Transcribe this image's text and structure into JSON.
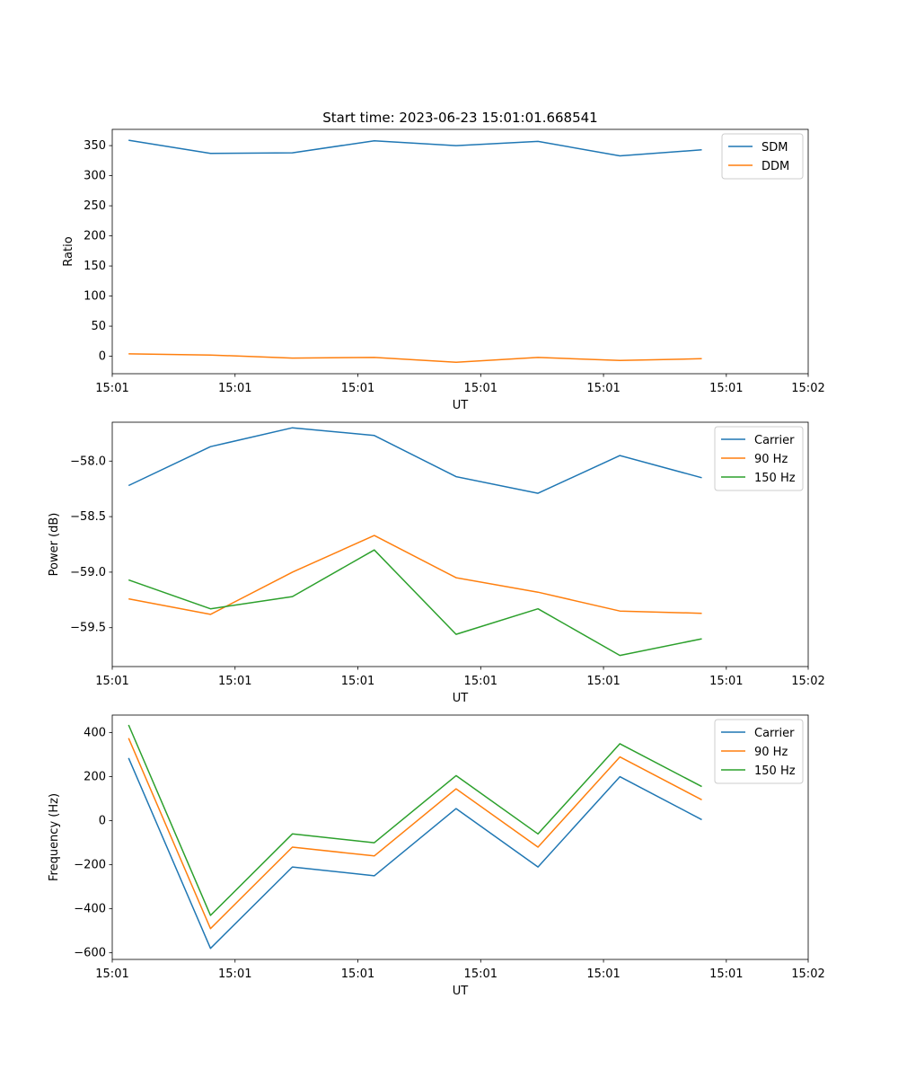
{
  "chart_data": [
    {
      "type": "line",
      "title": "Start time: 2023-06-23 15:01:01.668541",
      "xlabel": "UT",
      "ylabel": "Ratio",
      "x_tick_labels": [
        "15:01",
        "15:01",
        "15:01",
        "15:01",
        "15:01",
        "15:01",
        "15:02"
      ],
      "y_ticks": [
        0,
        50,
        100,
        150,
        200,
        250,
        300,
        350
      ],
      "ylim": [
        -29,
        377
      ],
      "x": [
        1,
        2,
        3,
        4,
        5,
        6,
        7,
        8
      ],
      "xlim": [
        0.8,
        9.3
      ],
      "x_tick_positions": [
        0.8,
        2.3,
        3.8,
        5.3,
        6.8,
        8.3,
        9.3
      ],
      "legend": "upper right",
      "series": [
        {
          "name": "SDM",
          "color": "#1f77b4",
          "values": [
            359,
            337,
            338,
            358,
            350,
            357,
            333,
            343
          ]
        },
        {
          "name": "DDM",
          "color": "#ff7f0e",
          "values": [
            4,
            2,
            -3,
            -2,
            -10,
            -2,
            -7,
            -4
          ]
        }
      ]
    },
    {
      "type": "line",
      "xlabel": "UT",
      "ylabel": "Power (dB)",
      "x_tick_labels": [
        "15:01",
        "15:01",
        "15:01",
        "15:01",
        "15:01",
        "15:01",
        "15:02"
      ],
      "y_ticks": [
        -59.5,
        -59.0,
        -58.5,
        -58.0
      ],
      "y_tick_labels": [
        "−59.5",
        "−59.0",
        "−58.5",
        "−58.0"
      ],
      "ylim": [
        -59.85,
        -57.65
      ],
      "x": [
        1,
        2,
        3,
        4,
        5,
        6,
        7,
        8
      ],
      "xlim": [
        0.8,
        9.3
      ],
      "x_tick_positions": [
        0.8,
        2.3,
        3.8,
        5.3,
        6.8,
        8.3,
        9.3
      ],
      "legend": "upper right",
      "series": [
        {
          "name": "Carrier",
          "color": "#1f77b4",
          "values": [
            -58.22,
            -57.87,
            -57.7,
            -57.77,
            -58.14,
            -58.29,
            -57.95,
            -58.15
          ]
        },
        {
          "name": "90 Hz",
          "color": "#ff7f0e",
          "values": [
            -59.24,
            -59.38,
            -59.0,
            -58.67,
            -59.05,
            -59.18,
            -59.35,
            -59.37
          ]
        },
        {
          "name": "150 Hz",
          "color": "#2ca02c",
          "values": [
            -59.07,
            -59.33,
            -59.22,
            -58.8,
            -59.56,
            -59.33,
            -59.75,
            -59.6
          ]
        }
      ]
    },
    {
      "type": "line",
      "xlabel": "UT",
      "ylabel": "Frequency (Hz)",
      "x_tick_labels": [
        "15:01",
        "15:01",
        "15:01",
        "15:01",
        "15:01",
        "15:01",
        "15:02"
      ],
      "y_ticks": [
        -600,
        -400,
        -200,
        0,
        200,
        400
      ],
      "y_tick_labels": [
        "−600",
        "−400",
        "−200",
        "0",
        "200",
        "400"
      ],
      "ylim": [
        -630,
        480
      ],
      "x": [
        1,
        2,
        3,
        4,
        5,
        6,
        7,
        8
      ],
      "xlim": [
        0.8,
        9.3
      ],
      "x_tick_positions": [
        0.8,
        2.3,
        3.8,
        5.3,
        6.8,
        8.3,
        9.3
      ],
      "legend": "upper right",
      "series": [
        {
          "name": "Carrier",
          "color": "#1f77b4",
          "values": [
            285,
            -580,
            -210,
            -250,
            55,
            -210,
            200,
            5
          ]
        },
        {
          "name": "90 Hz",
          "color": "#ff7f0e",
          "values": [
            375,
            -490,
            -120,
            -160,
            145,
            -120,
            290,
            95
          ]
        },
        {
          "name": "150 Hz",
          "color": "#2ca02c",
          "values": [
            435,
            -430,
            -60,
            -100,
            205,
            -60,
            350,
            155
          ]
        }
      ]
    }
  ]
}
